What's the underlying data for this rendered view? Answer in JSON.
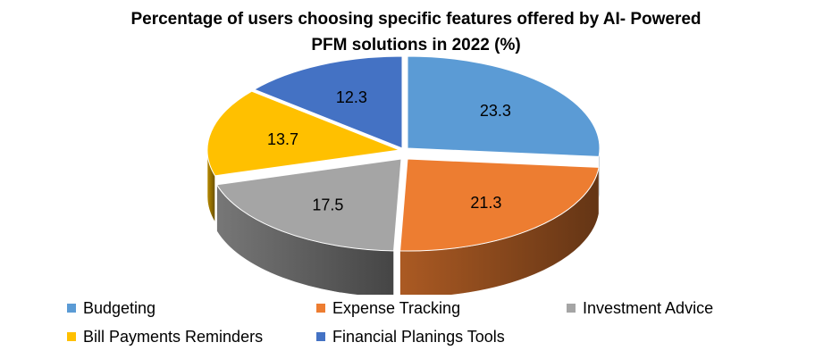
{
  "title": {
    "line1": "Percentage of users choosing  specific features offered by AI- Powered",
    "line2": "PFM solutions  in 2022 (%)"
  },
  "chart_data": {
    "type": "pie",
    "title": "Percentage of users choosing specific features offered by AI- Powered PFM solutions in 2022 (%)",
    "categories": [
      "Budgeting",
      "Expense Tracking",
      "Investment Advice",
      "Bill Payments Reminders",
      "Financial Planings Tools"
    ],
    "values": [
      23.3,
      21.3,
      17.5,
      13.7,
      12.3
    ],
    "labels": [
      "23.3",
      "21.3",
      "17.5",
      "13.7",
      "12.3"
    ],
    "colors": [
      "#5b9bd5",
      "#ed7d31",
      "#a5a5a5",
      "#ffc000",
      "#4472c4"
    ],
    "style": "3d-exploded",
    "legend_position": "bottom"
  },
  "legend": {
    "items": [
      {
        "label": "Budgeting",
        "color": "#5b9bd5"
      },
      {
        "label": "Expense Tracking",
        "color": "#ed7d31"
      },
      {
        "label": "Investment Advice",
        "color": "#a5a5a5"
      },
      {
        "label": "Bill Payments Reminders",
        "color": "#ffc000"
      },
      {
        "label": "Financial Planings Tools",
        "color": "#4472c4"
      }
    ]
  }
}
